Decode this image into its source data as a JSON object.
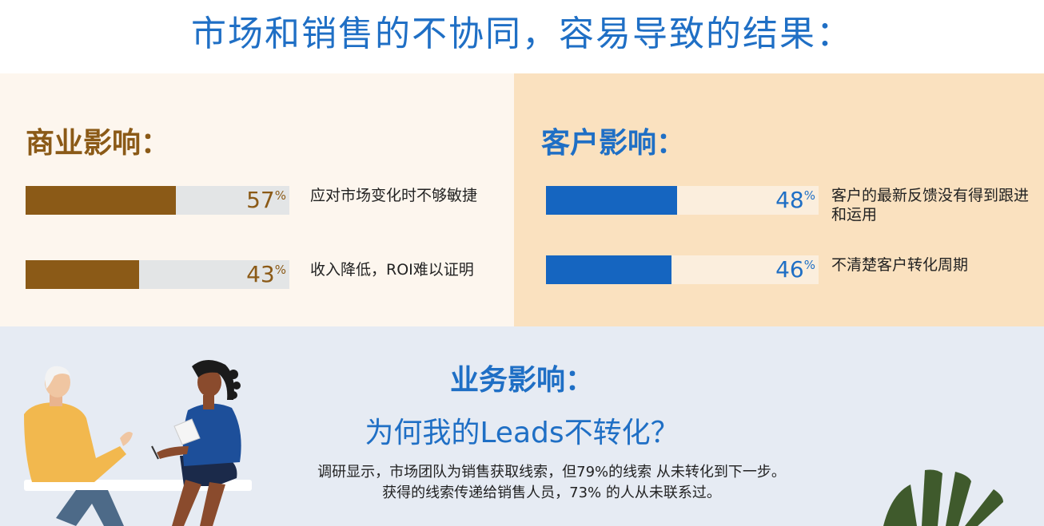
{
  "page_title": "市场和销售的不协同，容易导致的结果：",
  "business_impact": {
    "heading": "商业影响：",
    "items": [
      {
        "value": "57",
        "unit": "%",
        "fraction": 0.57,
        "label": "应对市场变化时不够敏捷"
      },
      {
        "value": "43",
        "unit": "%",
        "fraction": 0.43,
        "label": "收入降低，ROI难以证明"
      }
    ]
  },
  "customer_impact": {
    "heading": "客户影响：",
    "items": [
      {
        "value": "48",
        "unit": "%",
        "fraction": 0.48,
        "label": "客户的最新反馈没有得到跟进和运用"
      },
      {
        "value": "46",
        "unit": "%",
        "fraction": 0.46,
        "label": "不清楚客户转化周期"
      }
    ]
  },
  "operations_impact": {
    "heading": "业务影响：",
    "subheading": "为何我的Leads不转化？",
    "body_line1": "调研显示，市场团队为销售获取线索，但79%的线索 从未转化到下一步。",
    "body_line2": "获得的线索传递给销售人员，73% 的人从未联系过。"
  },
  "colors": {
    "title_blue": "#1f6fc5",
    "brown": "#8b5a17",
    "bar_blue": "#1565c0",
    "left_panel_bg": "#fdf6ee",
    "right_panel_bg": "#fae1bf",
    "bottom_bg": "#e6ebf3"
  },
  "icons": [
    "people-talking-illustration",
    "plant-leaves-illustration"
  ]
}
